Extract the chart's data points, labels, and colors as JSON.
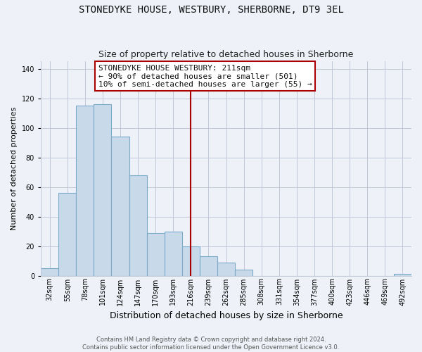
{
  "title": "STONEDYKE HOUSE, WESTBURY, SHERBORNE, DT9 3EL",
  "subtitle": "Size of property relative to detached houses in Sherborne",
  "xlabel": "Distribution of detached houses by size in Sherborne",
  "ylabel": "Number of detached properties",
  "bar_labels": [
    "32sqm",
    "55sqm",
    "78sqm",
    "101sqm",
    "124sqm",
    "147sqm",
    "170sqm",
    "193sqm",
    "216sqm",
    "239sqm",
    "262sqm",
    "285sqm",
    "308sqm",
    "331sqm",
    "354sqm",
    "377sqm",
    "400sqm",
    "423sqm",
    "446sqm",
    "469sqm",
    "492sqm"
  ],
  "bar_values": [
    5,
    56,
    115,
    116,
    94,
    68,
    29,
    30,
    20,
    13,
    9,
    4,
    0,
    0,
    0,
    0,
    0,
    0,
    0,
    0,
    1
  ],
  "bar_color": "#c8daea",
  "bar_edge_color": "#7aaac8",
  "vline_x_index": 8,
  "vline_color": "#aa0000",
  "ylim": [
    0,
    145
  ],
  "yticks": [
    0,
    20,
    40,
    60,
    80,
    100,
    120,
    140
  ],
  "annotation_title": "STONEDYKE HOUSE WESTBURY: 211sqm",
  "annotation_line1": "← 90% of detached houses are smaller (501)",
  "annotation_line2": "10% of semi-detached houses are larger (55) →",
  "box_facecolor": "#ffffff",
  "box_edgecolor": "#aa0000",
  "footer_line1": "Contains HM Land Registry data © Crown copyright and database right 2024.",
  "footer_line2": "Contains public sector information licensed under the Open Government Licence v3.0.",
  "background_color": "#eef2f8",
  "plot_background_color": "#eef2f8",
  "grid_color": "#c0c8d8",
  "title_fontsize": 10,
  "subtitle_fontsize": 9,
  "ylabel_fontsize": 8,
  "xlabel_fontsize": 9,
  "tick_fontsize": 7,
  "annot_fontsize": 8
}
